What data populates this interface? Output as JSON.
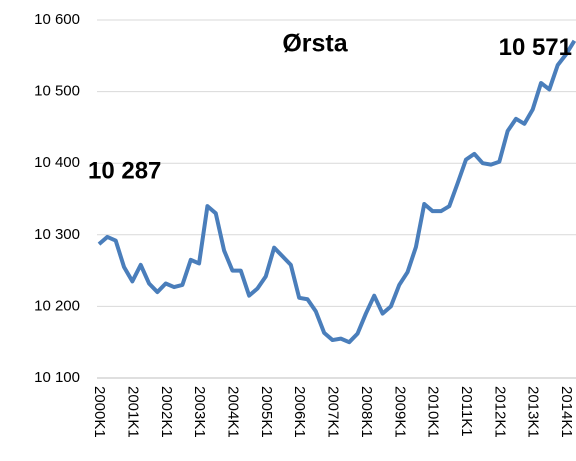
{
  "chart_data": {
    "type": "line",
    "title": "Ørsta",
    "categories": [
      "2000K1",
      null,
      null,
      null,
      "2001K1",
      null,
      null,
      null,
      "2002K1",
      null,
      null,
      null,
      "2003K1",
      null,
      null,
      null,
      "2004K1",
      null,
      null,
      null,
      "2005K1",
      null,
      null,
      null,
      "2006K1",
      null,
      null,
      null,
      "2007K1",
      null,
      null,
      null,
      "2008K1",
      null,
      null,
      null,
      "2009K1",
      null,
      null,
      null,
      "2010K1",
      null,
      null,
      null,
      "2011K1",
      null,
      null,
      null,
      "2012K1",
      null,
      null,
      null,
      "2013K1",
      null,
      null,
      null,
      "2014K1",
      null
    ],
    "series": [
      {
        "name": "Ørsta",
        "color": "#4a7ebb",
        "values": [
          10287,
          10297,
          10292,
          10255,
          10235,
          10258,
          10232,
          10220,
          10232,
          10227,
          10230,
          10265,
          10260,
          10340,
          10330,
          10278,
          10250,
          10250,
          10215,
          10225,
          10242,
          10282,
          10270,
          10258,
          10212,
          10210,
          10193,
          10163,
          10153,
          10155,
          10150,
          10162,
          10190,
          10215,
          10190,
          10200,
          10230,
          10248,
          10283,
          10343,
          10333,
          10333,
          10340,
          10372,
          10405,
          10413,
          10400,
          10398,
          10402,
          10445,
          10462,
          10455,
          10475,
          10512,
          10503,
          10537,
          10552,
          10571
        ],
        "value_labels": [
          "10 287",
          null,
          null,
          null,
          null,
          null,
          null,
          null,
          null,
          null,
          null,
          null,
          null,
          null,
          null,
          null,
          null,
          null,
          null,
          null,
          null,
          null,
          null,
          null,
          null,
          null,
          null,
          null,
          null,
          null,
          null,
          null,
          null,
          null,
          null,
          null,
          null,
          null,
          null,
          null,
          null,
          null,
          null,
          null,
          null,
          null,
          null,
          null,
          null,
          null,
          null,
          null,
          null,
          null,
          null,
          null,
          null,
          "10 571"
        ]
      }
    ],
    "ylim": [
      10100,
      10600
    ],
    "yticks": [
      {
        "value": 10100,
        "label": "10 100"
      },
      {
        "value": 10200,
        "label": "10 200"
      },
      {
        "value": 10300,
        "label": "10 300"
      },
      {
        "value": 10400,
        "label": "10 400"
      },
      {
        "value": 10500,
        "label": "10 500"
      },
      {
        "value": 10600,
        "label": "10 600"
      }
    ],
    "grid": true
  }
}
